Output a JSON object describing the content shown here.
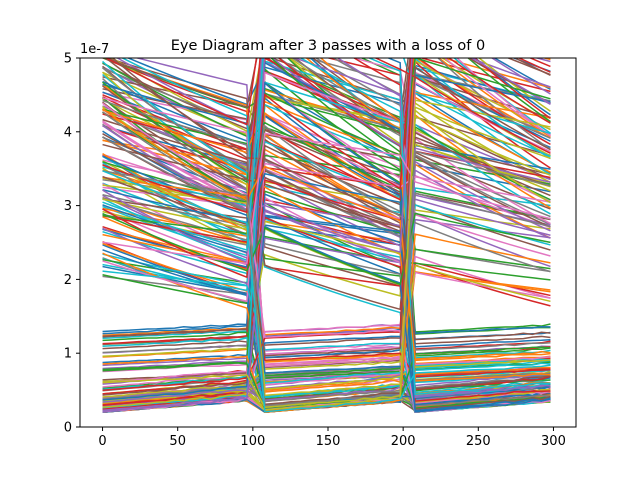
{
  "chart_data": {
    "type": "line",
    "title": "Eye Diagram after 3 passes with a loss of 0",
    "xlabel": "",
    "ylabel": "",
    "y_offset_label": "1e-7",
    "xlim": [
      -15,
      315
    ],
    "ylim": [
      0,
      5
    ],
    "y_scale_factor": 1e-07,
    "grid": false,
    "legend": "none",
    "x_ticks": [
      0,
      50,
      100,
      150,
      200,
      250,
      300
    ],
    "y_ticks": [
      0,
      1,
      2,
      3,
      4,
      5
    ],
    "x_tick_labels": [
      "0",
      "50",
      "100",
      "150",
      "200",
      "250",
      "300"
    ],
    "y_tick_labels": [
      "0",
      "1",
      "2",
      "3",
      "4",
      "5"
    ],
    "transition_points": [
      0,
      100,
      200,
      300
    ],
    "transition_width": 8,
    "decay_rate_range_per_unit": [
      0.0008,
      0.004
    ],
    "high_level_range": [
      2.0,
      5.2
    ],
    "low_level_range": [
      0.2,
      1.3
    ],
    "trace_count": 240,
    "colors": [
      "#1f77b4",
      "#ff7f0e",
      "#2ca02c",
      "#d62728",
      "#9467bd",
      "#8c564b",
      "#e377c2",
      "#7f7f7f",
      "#bcbd22",
      "#17becf"
    ]
  }
}
